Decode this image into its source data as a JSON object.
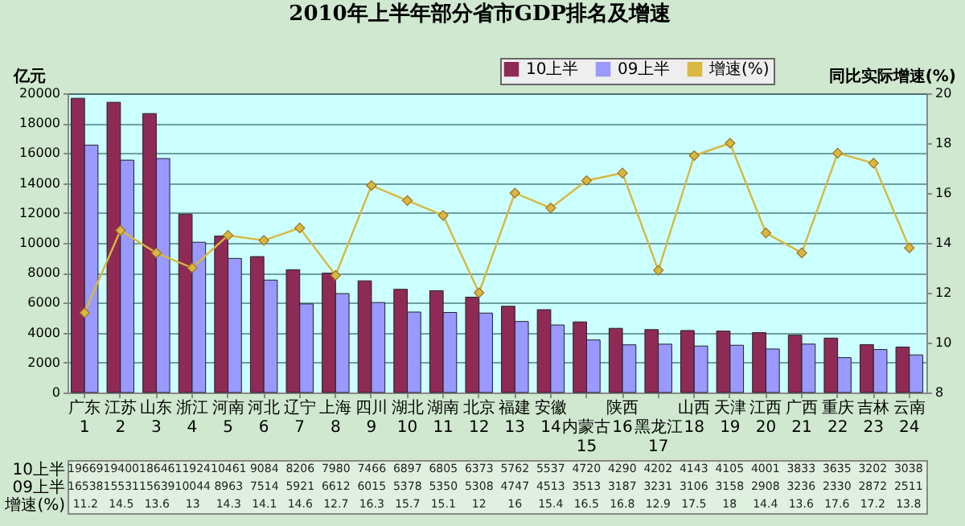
{
  "chart_data": {
    "type": "bar",
    "title": "2010年上半年部分省市GDP排名及增速",
    "ylabel": "亿元",
    "y2label": "同比实际增速(%)",
    "categories": [
      "广东\n1",
      "江苏\n2",
      "山东\n3",
      "浙江\n4",
      "河南\n5",
      "河北\n6",
      "辽宁\n7",
      "上海\n8",
      "四川\n9",
      "湖北\n10",
      "湖南\n11",
      "北京\n12",
      "福建\n13",
      "安徽\n14",
      "内蒙古\n15",
      "陕西\n16",
      "黑龙江\n17",
      "山西\n18",
      "天津\n19",
      "江西\n20",
      "广西\n21",
      "重庆\n22",
      "吉林\n23",
      "云南\n24"
    ],
    "series": [
      {
        "name": "10上半",
        "color": "#8e2a55",
        "values": [
          19669,
          19400,
          18646,
          11924,
          10461,
          9084,
          8206,
          7980,
          7466,
          6897,
          6805,
          6373,
          5762,
          5537,
          4720,
          4290,
          4202,
          4143,
          4105,
          4001,
          3833,
          3635,
          3202,
          3038
        ]
      },
      {
        "name": "09上半",
        "color": "#9999ff",
        "values": [
          16538,
          15531,
          15639,
          10044,
          8963,
          7514,
          5921,
          6612,
          6015,
          5378,
          5350,
          5308,
          4747,
          4513,
          3513,
          3187,
          3231,
          3106,
          3158,
          2908,
          3236,
          2330,
          2872,
          2511
        ]
      },
      {
        "name": "增速(%)",
        "type": "line",
        "axis": "y2",
        "color": "#d8b840",
        "values": [
          11.2,
          14.5,
          13.6,
          13,
          14.3,
          14.1,
          14.6,
          12.7,
          16.3,
          15.7,
          15.1,
          12,
          16,
          15.4,
          16.5,
          16.8,
          12.9,
          17.5,
          18,
          14.4,
          13.6,
          17.6,
          17.2,
          13.8
        ]
      }
    ],
    "ylim": [
      0,
      20000
    ],
    "yticks": [
      0,
      2000,
      4000,
      6000,
      8000,
      10000,
      12000,
      14000,
      16000,
      18000,
      20000
    ],
    "y2lim": [
      8,
      20
    ],
    "y2ticks": [
      8,
      10,
      12,
      14,
      16,
      18,
      20
    ],
    "grid": "y",
    "legend": "top right",
    "marker": "diamond",
    "data_labels": true
  }
}
